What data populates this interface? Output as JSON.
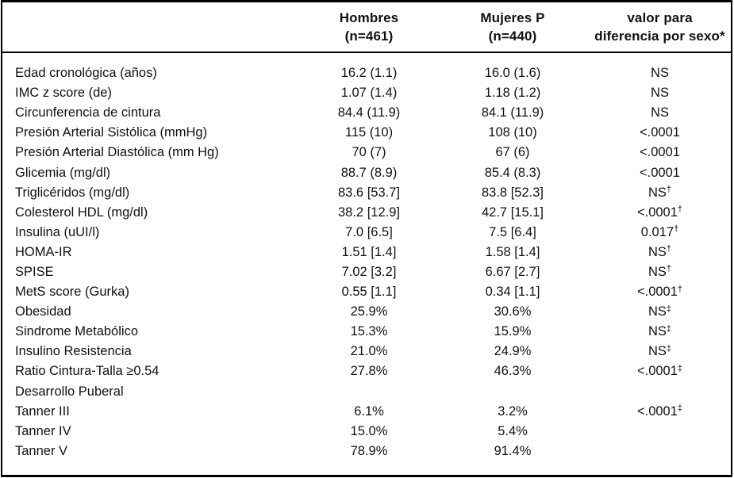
{
  "table": {
    "colors": {
      "border": "#000000",
      "text": "#111111",
      "background": "#ffffff"
    },
    "header": {
      "col_label": "",
      "col_hombres": [
        "Hombres",
        "(n=461)"
      ],
      "col_mujeres": [
        "Mujeres P",
        "(n=440)"
      ],
      "col_pvalue": [
        "valor para",
        "diferencia por sexo*"
      ]
    },
    "rows": [
      {
        "label": "Edad cronológica (años)",
        "hombres": "16.2 (1.1)",
        "mujeres": "16.0 (1.6)",
        "p": "NS",
        "sup": ""
      },
      {
        "label": "IMC z score (de)",
        "hombres": "1.07 (1.4)",
        "mujeres": "1.18 (1.2)",
        "p": "NS",
        "sup": ""
      },
      {
        "label": "Circunferencia de cintura",
        "hombres": "84.4 (11.9)",
        "mujeres": "84.1 (11.9)",
        "p": "NS",
        "sup": ""
      },
      {
        "label": "Presión Arterial Sistólica (mmHg)",
        "hombres": "115 (10)",
        "mujeres": "108 (10)",
        "p": "<.0001",
        "sup": ""
      },
      {
        "label": "Presión Arterial Diastólica (mm Hg)",
        "hombres": "70 (7)",
        "mujeres": "67 (6)",
        "p": "<.0001",
        "sup": ""
      },
      {
        "label": "Glicemia (mg/dl)",
        "hombres": "88.7 (8.9)",
        "mujeres": "85.4 (8.3)",
        "p": "<.0001",
        "sup": ""
      },
      {
        "label": "Triglicéridos (mg/dl)",
        "hombres": "83.6 [53.7]",
        "mujeres": "83.8 [52.3]",
        "p": "NS",
        "sup": "†"
      },
      {
        "label": "Colesterol HDL (mg/dl)",
        "hombres": "38.2 [12.9]",
        "mujeres": "42.7 [15.1]",
        "p": "<.0001",
        "sup": "†"
      },
      {
        "label": "Insulina (uUI/l)",
        "hombres": "7.0 [6.5]",
        "mujeres": "7.5 [6.4]",
        "p": "0.017",
        "sup": "†"
      },
      {
        "label": "HOMA-IR",
        "hombres": "1.51 [1.4]",
        "mujeres": "1.58 [1.4]",
        "p": "NS",
        "sup": "†"
      },
      {
        "label": "SPISE",
        "hombres": "7.02 [3.2]",
        "mujeres": "6.67 [2.7]",
        "p": "NS",
        "sup": "†"
      },
      {
        "label": "MetS score (Gurka)",
        "hombres": "0.55 [1.1]",
        "mujeres": "0.34 [1.1]",
        "p": "<.0001",
        "sup": "†"
      },
      {
        "label": "Obesidad",
        "hombres": "25.9%",
        "mujeres": "30.6%",
        "p": "NS",
        "sup": "‡"
      },
      {
        "label": "Sindrome Metabólico",
        "hombres": "15.3%",
        "mujeres": "15.9%",
        "p": "NS",
        "sup": "‡"
      },
      {
        "label": "Insulino Resistencia",
        "hombres": "21.0%",
        "mujeres": "24.9%",
        "p": "NS",
        "sup": "‡"
      },
      {
        "label": "Ratio Cintura-Talla ≥0.54",
        "hombres": "27.8%",
        "mujeres": "46.3%",
        "p": "<.0001",
        "sup": "‡"
      },
      {
        "label": "Desarrollo Puberal",
        "hombres": "",
        "mujeres": "",
        "p": "",
        "sup": ""
      },
      {
        "label": "Tanner III",
        "hombres": "6.1%",
        "mujeres": "3.2%",
        "p": "<.0001",
        "sup": "‡"
      },
      {
        "label": "Tanner IV",
        "hombres": "15.0%",
        "mujeres": "5.4%",
        "p": "",
        "sup": ""
      },
      {
        "label": "Tanner V",
        "hombres": "78.9%",
        "mujeres": "91.4%",
        "p": "",
        "sup": ""
      }
    ]
  }
}
